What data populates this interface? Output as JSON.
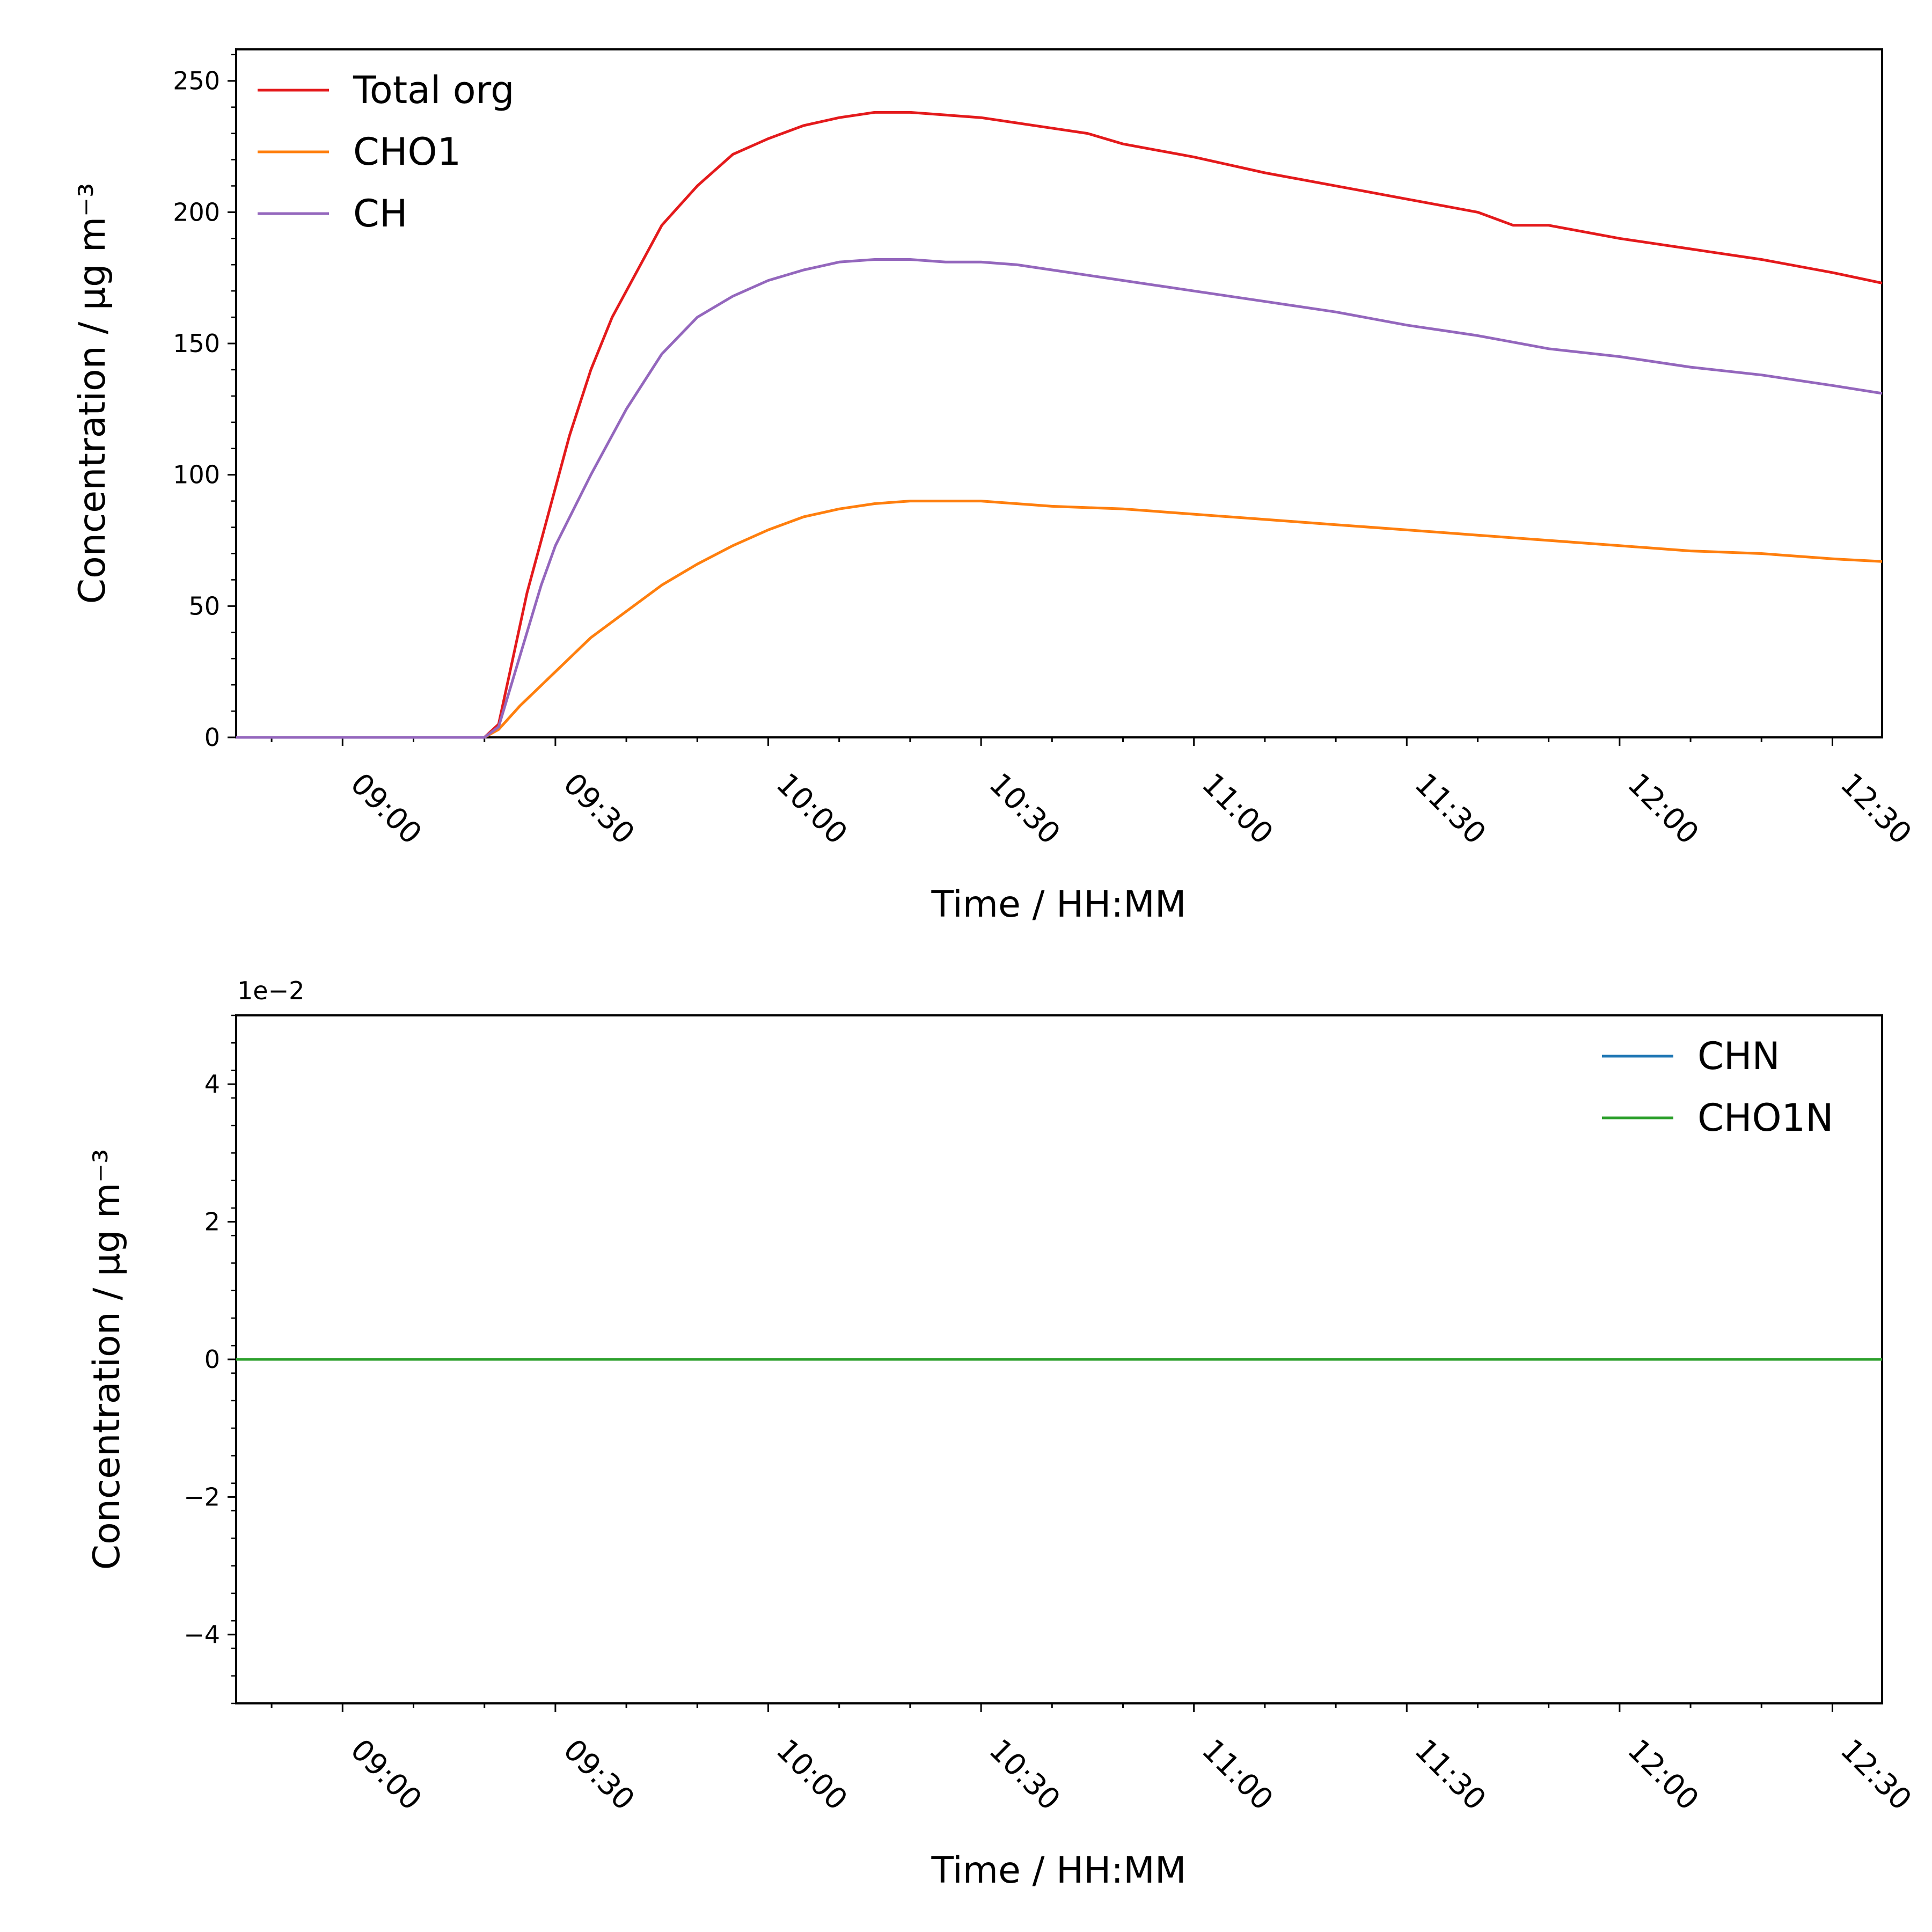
{
  "chart_data": [
    {
      "type": "line",
      "xlabel": "Time / HH:MM",
      "ylabel": "Concentration / μg m⁻³",
      "xlim": [
        "08:45",
        "12:37"
      ],
      "ylim": [
        0,
        262
      ],
      "x_ticks": [
        "09:00",
        "09:30",
        "10:00",
        "10:30",
        "11:00",
        "11:30",
        "12:00",
        "12:30"
      ],
      "y_ticks": [
        "0",
        "50",
        "100",
        "150",
        "200",
        "250"
      ],
      "legend_position": "top-left",
      "series": [
        {
          "name": "Total org",
          "color": "#e41a1c",
          "x": [
            "08:45",
            "09:00",
            "09:15",
            "09:20",
            "09:22",
            "09:24",
            "09:26",
            "09:28",
            "09:30",
            "09:32",
            "09:35",
            "09:38",
            "09:40",
            "09:45",
            "09:50",
            "09:55",
            "10:00",
            "10:05",
            "10:10",
            "10:15",
            "10:20",
            "10:25",
            "10:30",
            "10:35",
            "10:40",
            "10:45",
            "10:50",
            "11:00",
            "11:10",
            "11:20",
            "11:30",
            "11:40",
            "11:45",
            "11:50",
            "12:00",
            "12:10",
            "12:20",
            "12:30",
            "12:37"
          ],
          "y": [
            0,
            0,
            0,
            0,
            5,
            30,
            55,
            75,
            95,
            115,
            140,
            160,
            170,
            195,
            210,
            222,
            228,
            233,
            236,
            238,
            238,
            237,
            236,
            234,
            232,
            230,
            226,
            221,
            215,
            210,
            205,
            200,
            195,
            195,
            190,
            186,
            182,
            177,
            173
          ]
        },
        {
          "name": "CHO1",
          "color": "#ff7f0e",
          "x": [
            "08:45",
            "09:00",
            "09:15",
            "09:20",
            "09:22",
            "09:25",
            "09:30",
            "09:35",
            "09:40",
            "09:45",
            "09:50",
            "09:55",
            "10:00",
            "10:05",
            "10:10",
            "10:15",
            "10:20",
            "10:25",
            "10:30",
            "10:35",
            "10:40",
            "10:50",
            "11:00",
            "11:10",
            "11:20",
            "11:30",
            "11:40",
            "11:50",
            "12:00",
            "12:10",
            "12:20",
            "12:30",
            "12:37"
          ],
          "y": [
            0,
            0,
            0,
            0,
            3,
            12,
            25,
            38,
            48,
            58,
            66,
            73,
            79,
            84,
            87,
            89,
            90,
            90,
            90,
            89,
            88,
            87,
            85,
            83,
            81,
            79,
            77,
            75,
            73,
            71,
            70,
            68,
            67
          ]
        },
        {
          "name": "CH",
          "color": "#9467bd",
          "x": [
            "08:45",
            "09:00",
            "09:15",
            "09:20",
            "09:22",
            "09:24",
            "09:26",
            "09:28",
            "09:30",
            "09:35",
            "09:40",
            "09:45",
            "09:50",
            "09:55",
            "10:00",
            "10:05",
            "10:10",
            "10:15",
            "10:20",
            "10:25",
            "10:30",
            "10:35",
            "10:40",
            "10:50",
            "11:00",
            "11:10",
            "11:20",
            "11:30",
            "11:40",
            "11:50",
            "12:00",
            "12:10",
            "12:20",
            "12:30",
            "12:37"
          ],
          "y": [
            0,
            0,
            0,
            0,
            4,
            22,
            40,
            58,
            73,
            100,
            125,
            146,
            160,
            168,
            174,
            178,
            181,
            182,
            182,
            181,
            181,
            180,
            178,
            174,
            170,
            166,
            162,
            157,
            153,
            148,
            145,
            141,
            138,
            134,
            131
          ]
        }
      ]
    },
    {
      "type": "line",
      "xlabel": "Time / HH:MM",
      "ylabel": "Concentration / μg m⁻³",
      "xlim": [
        "08:45",
        "12:37"
      ],
      "ylim": [
        -0.05,
        0.05
      ],
      "y_scale_label": "1e−2",
      "x_ticks": [
        "09:00",
        "09:30",
        "10:00",
        "10:30",
        "11:00",
        "11:30",
        "12:00",
        "12:30"
      ],
      "y_ticks": [
        "−4",
        "−2",
        "0",
        "2",
        "4"
      ],
      "legend_position": "top-right",
      "series": [
        {
          "name": "CHN",
          "color": "#1f77b4",
          "x": [
            "08:45",
            "12:37"
          ],
          "y": [
            0,
            0
          ]
        },
        {
          "name": "CHO1N",
          "color": "#2ca02c",
          "x": [
            "08:45",
            "12:37"
          ],
          "y": [
            0,
            0
          ]
        }
      ]
    }
  ]
}
